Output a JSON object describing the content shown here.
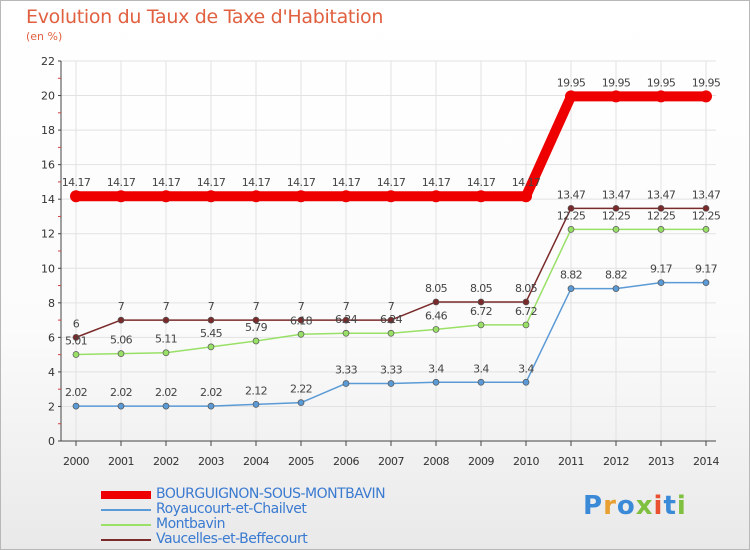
{
  "title": "Evolution du Taux de Taxe d'Habitation",
  "unit_label": "(en %)",
  "logo_text": "Proxiti",
  "chart_data": {
    "type": "line",
    "title": "Evolution du Taux de Taxe d'Habitation",
    "ylabel": "(en %)",
    "xlabel": "",
    "ylim": [
      0,
      22
    ],
    "yticks": [
      0,
      2,
      4,
      6,
      8,
      10,
      12,
      14,
      16,
      18,
      20,
      22
    ],
    "grid": true,
    "legend_position": "bottom-left",
    "x": [
      "2000",
      "2001",
      "2002",
      "2003",
      "2004",
      "2005",
      "2006",
      "2007",
      "2008",
      "2009",
      "2010",
      "2011",
      "2012",
      "2013",
      "2014"
    ],
    "series": [
      {
        "name": "BOURGUIGNON-SOUS-MONTBAVIN",
        "color": "#ee0000",
        "values": [
          14.17,
          14.17,
          14.17,
          14.17,
          14.17,
          14.17,
          14.17,
          14.17,
          14.17,
          14.17,
          14.17,
          19.95,
          19.95,
          19.95,
          19.95
        ],
        "labels": [
          "14.17",
          "14.17",
          "14.17",
          "14.17",
          "14.17",
          "14.17",
          "14.17",
          "14.17",
          "14.17",
          "14.17",
          "14.17",
          "19.95",
          "19.95",
          "19.95",
          "19.95"
        ]
      },
      {
        "name": "Royaucourt-et-Chailvet",
        "color": "#5a9ad6",
        "values": [
          2.02,
          2.02,
          2.02,
          2.02,
          2.12,
          2.22,
          3.33,
          3.33,
          3.4,
          3.4,
          3.4,
          8.82,
          8.82,
          9.17,
          9.17
        ],
        "labels": [
          "2.02",
          "2.02",
          "2.02",
          "2.02",
          "2.12",
          "2.22",
          "3.33",
          "3.33",
          "3.4",
          "3.4",
          "3.4",
          "8.82",
          "8.82",
          "9.17",
          "9.17"
        ]
      },
      {
        "name": "Montbavin",
        "color": "#99e066",
        "values": [
          5.01,
          5.06,
          5.11,
          5.45,
          5.79,
          6.18,
          6.24,
          6.24,
          6.46,
          6.72,
          6.72,
          12.25,
          12.25,
          12.25,
          12.25
        ],
        "labels": [
          "5.01",
          "5.06",
          "5.11",
          "5.45",
          "5.79",
          "6.18",
          "6.24",
          "6.24",
          "6.46",
          "6.72",
          "6.72",
          "12.25",
          "12.25",
          "12.25",
          "12.25"
        ]
      },
      {
        "name": "Vaucelles-et-Beffecourt",
        "color": "#7a2a2a",
        "values": [
          6,
          7,
          7,
          7,
          7,
          7,
          7,
          7,
          8.05,
          8.05,
          8.05,
          13.47,
          13.47,
          13.47,
          13.47
        ],
        "labels": [
          "6",
          "7",
          "7",
          "7",
          "7",
          "7",
          "7",
          "7",
          "8.05",
          "8.05",
          "8.05",
          "13.47",
          "13.47",
          "13.47",
          "13.47"
        ]
      }
    ]
  }
}
